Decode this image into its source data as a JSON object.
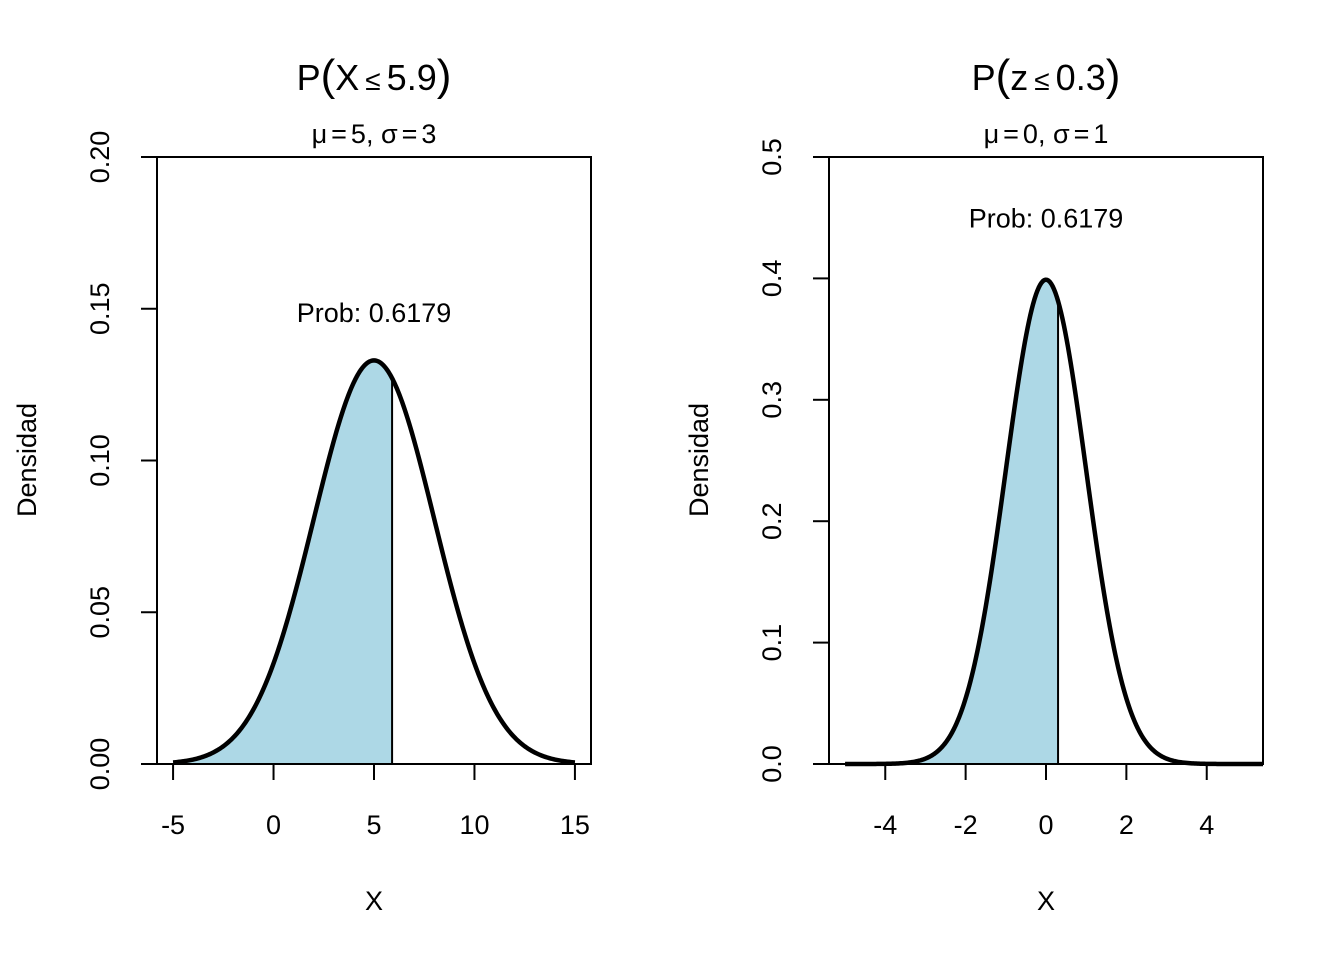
{
  "colors": {
    "fill": "#add8e6",
    "curve": "#000000",
    "background": "#ffffff"
  },
  "chart_data": [
    {
      "type": "area",
      "title": "P(X ≤ 5.9)",
      "title_parts": {
        "var": "X",
        "op": "≤",
        "value": "5.9"
      },
      "subtitle": "μ = 5, σ = 3",
      "subtitle_parts": {
        "mu": "μ",
        "mu_val": "5",
        "sigma": "σ",
        "sigma_val": "3"
      },
      "distribution": "normal",
      "mean": 5,
      "sd": 3,
      "x_range": [
        -5,
        15
      ],
      "shade_upper": 5.9,
      "xlabel": "X",
      "ylabel": "Densidad",
      "xlim": [
        -5.8,
        15.8
      ],
      "ylim": [
        0,
        0.2
      ],
      "xticks": [
        -5,
        0,
        5,
        10,
        15
      ],
      "xtick_labels": [
        "-5",
        "0",
        "5",
        "10",
        "15"
      ],
      "yticks": [
        0,
        0.05,
        0.1,
        0.15,
        0.2
      ],
      "ytick_labels": [
        "0.00",
        "0.05",
        "0.10",
        "0.15",
        "0.20"
      ],
      "annotation": {
        "text": "Prob: 0.6179",
        "x": 5,
        "y": 0.149
      }
    },
    {
      "type": "area",
      "title": "P(z ≤ 0.3)",
      "title_parts": {
        "var": "z",
        "op": "≤",
        "value": "0.3"
      },
      "subtitle": "μ = 0, σ = 1",
      "subtitle_parts": {
        "mu": "μ",
        "mu_val": "0",
        "sigma": "σ",
        "sigma_val": "1"
      },
      "distribution": "normal",
      "mean": 0,
      "sd": 1,
      "x_range": [
        -5,
        5.4
      ],
      "shade_upper": 0.3,
      "xlabel": "X",
      "ylabel": "Densidad",
      "xlim": [
        -5.4,
        5.4
      ],
      "ylim": [
        0,
        0.5
      ],
      "xticks": [
        -4,
        -2,
        0,
        2,
        4
      ],
      "xtick_labels": [
        "-4",
        "-2",
        "0",
        "2",
        "4"
      ],
      "yticks": [
        0,
        0.1,
        0.2,
        0.3,
        0.4,
        0.5
      ],
      "ytick_labels": [
        "0.0",
        "0.1",
        "0.2",
        "0.3",
        "0.4",
        "0.5"
      ],
      "annotation": {
        "text": "Prob: 0.6179",
        "x": 0,
        "y": 0.45
      }
    }
  ]
}
